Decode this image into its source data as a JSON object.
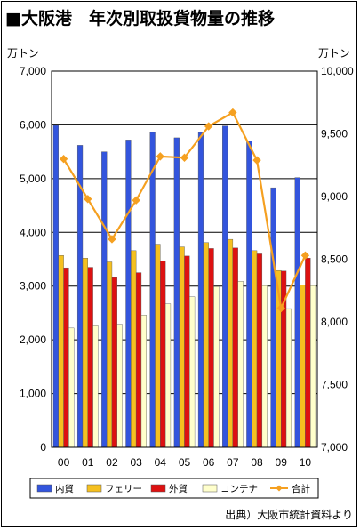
{
  "title": "■大阪港　年次別取扱貨物量の推移",
  "source": "出典）大阪市統計資料より",
  "colors": {
    "domestic": "#3355dd",
    "ferry": "#f5c020",
    "foreign": "#dd1111",
    "container": "#ffffcc",
    "total": "#f5a020",
    "plot_bg": "#ffffff"
  },
  "chart_data": {
    "type": "bar",
    "title": "大阪港　年次別取扱貨物量の推移",
    "categories": [
      "00",
      "01",
      "02",
      "03",
      "04",
      "05",
      "06",
      "07",
      "08",
      "09",
      "10"
    ],
    "y_left": {
      "unit": "万トン",
      "ylim": [
        0,
        7000
      ],
      "ticks": [
        "0",
        "1,000",
        "2,000",
        "3,000",
        "4,000",
        "5,000",
        "6,000",
        "7,000"
      ]
    },
    "y_right": {
      "unit": "万トン",
      "ylim": [
        7000,
        10000
      ],
      "ticks": [
        "7,000",
        "7,500",
        "8,000",
        "8,500",
        "9,000",
        "9,500",
        "10,000"
      ]
    },
    "grid": true,
    "legend_position": "bottom",
    "series": [
      {
        "name": "内貿",
        "kind": "bar",
        "axis": "left",
        "color_key": "domestic",
        "values": [
          5990,
          5620,
          5500,
          5720,
          5860,
          5760,
          5860,
          5980,
          5700,
          4830,
          5020
        ]
      },
      {
        "name": "フェリー",
        "kind": "bar",
        "axis": "left",
        "color_key": "ferry",
        "values": [
          3570,
          3520,
          3450,
          3660,
          3780,
          3730,
          3810,
          3870,
          3660,
          3290,
          3020
        ]
      },
      {
        "name": "外貿",
        "kind": "bar",
        "axis": "left",
        "color_key": "foreign",
        "values": [
          3340,
          3350,
          3160,
          3250,
          3470,
          3560,
          3700,
          3710,
          3600,
          3280,
          3520
        ]
      },
      {
        "name": "コンテナ",
        "kind": "bar",
        "axis": "left",
        "color_key": "container",
        "values": [
          2220,
          2260,
          2290,
          2460,
          2670,
          2800,
          2990,
          3090,
          3010,
          2580,
          3010
        ]
      },
      {
        "name": "合計",
        "kind": "line",
        "axis": "right",
        "color_key": "total",
        "values": [
          9300,
          8980,
          8660,
          8970,
          9320,
          9310,
          9560,
          9670,
          9290,
          8110,
          8530
        ]
      }
    ]
  }
}
